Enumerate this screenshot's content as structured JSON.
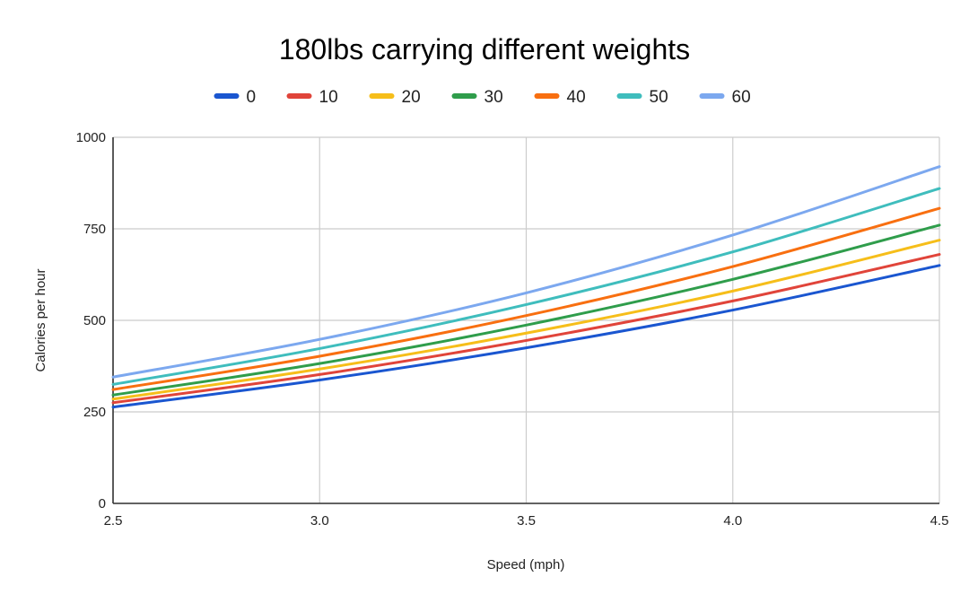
{
  "chart_data": {
    "type": "line",
    "title": "180lbs carrying different weights",
    "xlabel": "Speed (mph)",
    "ylabel": "Calories per hour",
    "xlim": [
      2.5,
      4.5
    ],
    "ylim": [
      0,
      1000
    ],
    "x_ticks": [
      "2.5",
      "3.0",
      "3.5",
      "4.0",
      "4.5"
    ],
    "y_ticks": [
      "0",
      "250",
      "500",
      "750",
      "1000"
    ],
    "x_tick_values": [
      2.5,
      3.0,
      3.5,
      4.0,
      4.5
    ],
    "y_tick_values": [
      0,
      250,
      500,
      750,
      1000
    ],
    "grid": true,
    "legend_position": "top",
    "x": [
      2.5,
      3.0,
      3.5,
      4.0,
      4.5
    ],
    "series": [
      {
        "name": "0",
        "color": "#1a56d0",
        "values": [
          263,
          337,
          425,
          528,
          650
        ]
      },
      {
        "name": "10",
        "color": "#e0443a",
        "values": [
          275,
          352,
          445,
          553,
          680
        ]
      },
      {
        "name": "20",
        "color": "#f6be1a",
        "values": [
          285,
          367,
          465,
          580,
          719
        ]
      },
      {
        "name": "30",
        "color": "#2f9d4b",
        "values": [
          296,
          382,
          487,
          612,
          760
        ]
      },
      {
        "name": "40",
        "color": "#f86f10",
        "values": [
          311,
          402,
          513,
          647,
          806
        ]
      },
      {
        "name": "50",
        "color": "#3fbdbd",
        "values": [
          325,
          423,
          543,
          687,
          860
        ]
      },
      {
        "name": "60",
        "color": "#7ca8ef",
        "values": [
          345,
          448,
          575,
          733,
          920
        ]
      }
    ]
  }
}
